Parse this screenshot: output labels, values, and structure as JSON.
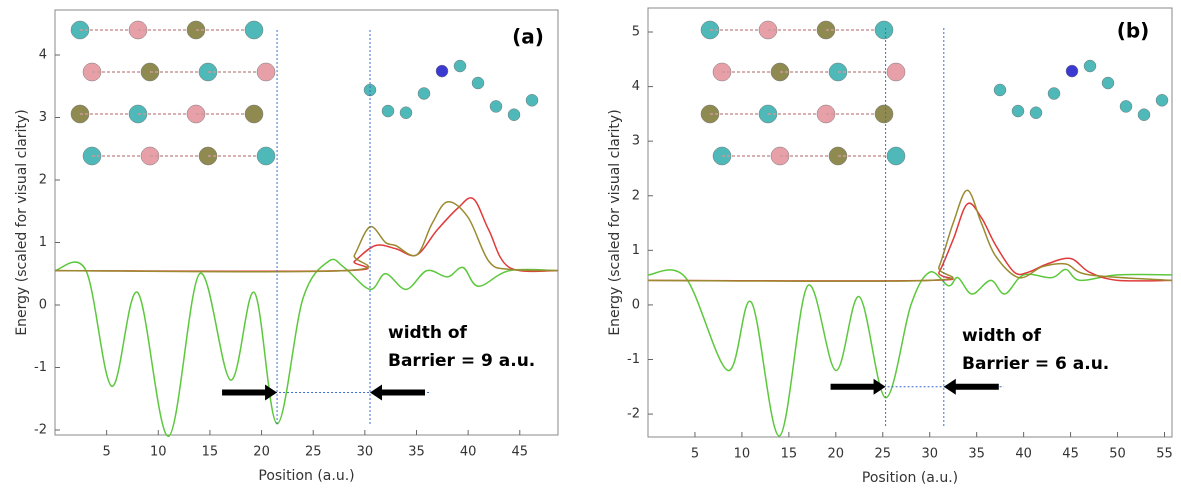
{
  "chart_data": [
    {
      "type": "line",
      "panel_label": "(a)",
      "xlabel": "Position (a.u.)",
      "ylabel": "Energy (scaled for visual clarity)",
      "annotation": [
        "width of",
        "Barrier = 9 a.u."
      ],
      "xlim": [
        0,
        48.7
      ],
      "ylim": [
        -2.08,
        4.72
      ],
      "xticks": [
        5,
        10,
        15,
        20,
        25,
        30,
        35,
        40,
        45
      ],
      "yticks": [
        -2,
        -1,
        0,
        1,
        2,
        3,
        4
      ],
      "guide_x": [
        21.5,
        30.5
      ],
      "guide_y": -1.4,
      "series": [
        {
          "color": "#5cc83c",
          "x": [
            0,
            3,
            5.5,
            8,
            11,
            14,
            17,
            19.3,
            21.5,
            24,
            26.5,
            28,
            30.5,
            32,
            34,
            36,
            38,
            39.5,
            41,
            44,
            48.7
          ],
          "values": [
            0.55,
            0.55,
            -1.3,
            0.2,
            -2.1,
            0.5,
            -1.2,
            0.2,
            -1.9,
            0.1,
            0.7,
            0.6,
            0.25,
            0.5,
            0.25,
            0.55,
            0.45,
            0.6,
            0.3,
            0.55,
            0.55
          ]
        },
        {
          "color": "#e03a3a",
          "x": [
            0,
            28,
            29,
            31,
            33,
            35,
            37,
            39,
            40.5,
            42,
            44,
            48.7
          ],
          "values": [
            0.55,
            0.55,
            0.7,
            0.95,
            0.9,
            0.8,
            1.2,
            1.55,
            1.7,
            1.2,
            0.6,
            0.55
          ]
        },
        {
          "color": "#9a8a30",
          "x": [
            0,
            28,
            29,
            30.5,
            32,
            33,
            35,
            36.5,
            38,
            40,
            42,
            44,
            48.7
          ],
          "values": [
            0.55,
            0.55,
            0.8,
            1.25,
            1.0,
            0.95,
            0.8,
            1.3,
            1.65,
            1.4,
            0.7,
            0.57,
            0.55
          ]
        }
      ]
    },
    {
      "type": "line",
      "panel_label": "(b)",
      "xlabel": "Position (a.u.)",
      "ylabel": "Energy (scaled for visual clarity)",
      "annotation": [
        "width of",
        "Barrier = 6 a.u."
      ],
      "xlim": [
        0,
        55.8
      ],
      "ylim": [
        -2.42,
        5.44
      ],
      "xticks": [
        5,
        10,
        15,
        20,
        25,
        30,
        35,
        40,
        45,
        50,
        55
      ],
      "yticks": [
        -2,
        -1,
        0,
        1,
        2,
        3,
        4,
        5
      ],
      "guide_x": [
        25.3,
        31.5
      ],
      "guide_y": -1.5,
      "series": [
        {
          "color": "#5cc83c",
          "x": [
            0,
            4,
            8.5,
            11,
            14,
            17,
            20,
            22.5,
            25.3,
            28,
            30,
            32,
            33,
            34.5,
            36.5,
            38,
            40,
            43,
            44.5,
            46,
            50,
            55.8
          ],
          "values": [
            0.55,
            0.5,
            -1.2,
            0.05,
            -2.4,
            0.35,
            -1.2,
            0.15,
            -1.7,
            0,
            0.6,
            0.35,
            0.5,
            0.2,
            0.45,
            0.2,
            0.55,
            0.5,
            0.65,
            0.45,
            0.55,
            0.55
          ]
        },
        {
          "color": "#e03a3a",
          "x": [
            0,
            30,
            31,
            32.5,
            34,
            35.5,
            37,
            39,
            40.5,
            42.5,
            45,
            47,
            50,
            55.8
          ],
          "values": [
            0.45,
            0.45,
            0.6,
            1.2,
            1.85,
            1.6,
            1.1,
            0.6,
            0.6,
            0.75,
            0.85,
            0.6,
            0.45,
            0.45
          ]
        },
        {
          "color": "#9a8a30",
          "x": [
            0,
            30,
            31,
            32.5,
            34,
            35.5,
            37,
            39.5,
            42,
            44.5,
            47,
            55.8
          ],
          "values": [
            0.45,
            0.45,
            0.7,
            1.5,
            2.1,
            1.5,
            0.9,
            0.5,
            0.7,
            0.75,
            0.55,
            0.45
          ]
        }
      ]
    }
  ]
}
